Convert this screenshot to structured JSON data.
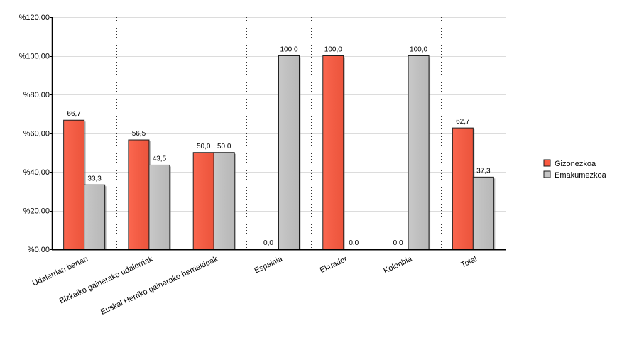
{
  "chart_data": {
    "type": "bar",
    "title": "",
    "xlabel": "",
    "ylabel": "",
    "categories": [
      "Udalerrian bertan",
      "Bizkaiko gainerako udalerriak",
      "Euskal Herriko gainerako herrialdeak",
      "Espainia",
      "Ekuador",
      "Kolonbia",
      "Total"
    ],
    "series": [
      {
        "name": "Gizonezkoa",
        "color": "#fb5a40",
        "values": [
          66.7,
          56.5,
          50.0,
          0.0,
          100.0,
          0.0,
          62.7
        ],
        "labels": [
          "66,7",
          "56,5",
          "50,0",
          "0,0",
          "100,0",
          "0,0",
          "62,7"
        ]
      },
      {
        "name": "Emakumezkoa",
        "color": "#c4c4c4",
        "values": [
          33.3,
          43.5,
          50.0,
          100.0,
          0.0,
          100.0,
          37.3
        ],
        "labels": [
          "33,3",
          "43,5",
          "50,0",
          "100,0",
          "0,0",
          "100,0",
          "37,3"
        ]
      }
    ],
    "ylim": [
      0,
      120
    ],
    "yticks": [
      0,
      20,
      40,
      60,
      80,
      100,
      120
    ],
    "ytick_labels": [
      "%0,00",
      "%20,00",
      "%40,00",
      "%60,00",
      "%80,00",
      "%100,00",
      "%120,00"
    ],
    "grid": true,
    "legend_position": "right"
  }
}
